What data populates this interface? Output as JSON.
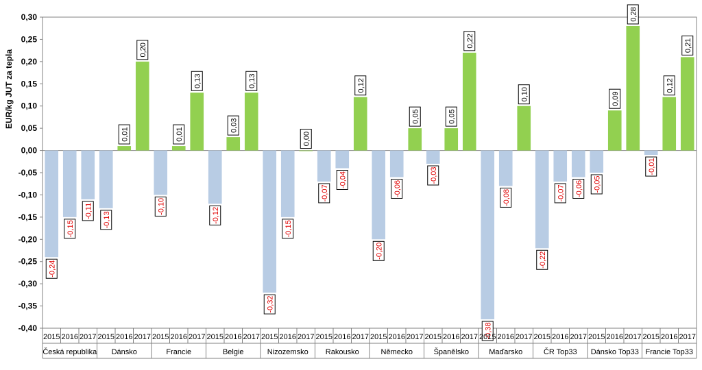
{
  "chart_data": {
    "type": "bar",
    "title": "",
    "ylabel": "EUR/kg JUT za tepla",
    "ylim": [
      -0.4,
      0.3
    ],
    "ytick_step": 0.05,
    "ytick_labels": [
      "0,30",
      "0,25",
      "0,20",
      "0,15",
      "0,10",
      "0,05",
      "0,00",
      "-0,05",
      "-0,10",
      "-0,15",
      "-0,20",
      "-0,25",
      "-0,30",
      "-0,35",
      "-0,40"
    ],
    "grid": false,
    "legend": "none",
    "years": [
      "2015",
      "2016",
      "2017"
    ],
    "groups": [
      {
        "name": "Česká republika",
        "values": [
          -0.24,
          -0.15,
          -0.11
        ],
        "labels": [
          "-0,24",
          "-0,15",
          "-0,11"
        ]
      },
      {
        "name": "Dánsko",
        "values": [
          -0.13,
          0.01,
          0.2
        ],
        "labels": [
          "-0,13",
          "0,01",
          "0,20"
        ]
      },
      {
        "name": "Francie",
        "values": [
          -0.1,
          0.01,
          0.13
        ],
        "labels": [
          "-0,10",
          "0,01",
          "0,13"
        ]
      },
      {
        "name": "Belgie",
        "values": [
          -0.12,
          0.03,
          0.13
        ],
        "labels": [
          "-0,12",
          "0,03",
          "0,13"
        ]
      },
      {
        "name": "Nizozemsko",
        "values": [
          -0.32,
          -0.15,
          0.0
        ],
        "labels": [
          "-0,32",
          "-0,15",
          "0,00"
        ]
      },
      {
        "name": "Rakousko",
        "values": [
          -0.07,
          -0.04,
          0.12
        ],
        "labels": [
          "-0,07",
          "-0,04",
          "0,12"
        ]
      },
      {
        "name": "Německo",
        "values": [
          -0.2,
          -0.06,
          0.05
        ],
        "labels": [
          "-0,20",
          "-0,06",
          "0,05"
        ]
      },
      {
        "name": "Španělsko",
        "values": [
          -0.03,
          0.05,
          0.22
        ],
        "labels": [
          "-0,03",
          "0,05",
          "0,22"
        ]
      },
      {
        "name": "Maďarsko",
        "values": [
          -0.38,
          -0.08,
          0.1
        ],
        "labels": [
          "-0,38",
          "-0,08",
          "0,10"
        ]
      },
      {
        "name": "ČR Top33",
        "values": [
          -0.22,
          -0.07,
          -0.06
        ],
        "labels": [
          "-0,22",
          "-0,07",
          "-0,06"
        ]
      },
      {
        "name": "Dánsko Top33",
        "values": [
          -0.05,
          0.09,
          0.28
        ],
        "labels": [
          "-0,05",
          "0,09",
          "0,28"
        ]
      },
      {
        "name": "Francie Top33",
        "values": [
          -0.01,
          0.12,
          0.21
        ],
        "labels": [
          "-0,01",
          "0,12",
          "0,21"
        ]
      }
    ],
    "colors": {
      "negative": "#b8cce4",
      "positive": "#92d050",
      "negative_label": "#e00000",
      "positive_label": "#000000",
      "axis": "#808080"
    }
  }
}
